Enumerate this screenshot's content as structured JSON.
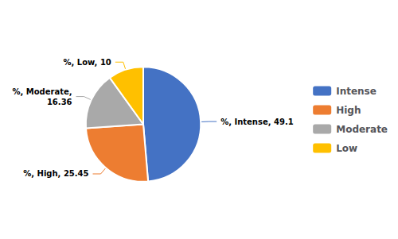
{
  "chart_data": {
    "type": "pie",
    "categories": [
      "Intense",
      "High",
      "Moderate",
      "Low"
    ],
    "values": [
      49.1,
      25.45,
      16.36,
      10.0
    ],
    "value_labels": [
      "%, Intense, 49.1",
      "%, High, 25.45",
      "%, Moderate,\n16.36",
      "%, Low, 10"
    ],
    "colors": [
      "#4472C4",
      "#ED7D31",
      "#A9A9A9",
      "#FFC000"
    ],
    "data_labels": true,
    "legend": "right"
  }
}
